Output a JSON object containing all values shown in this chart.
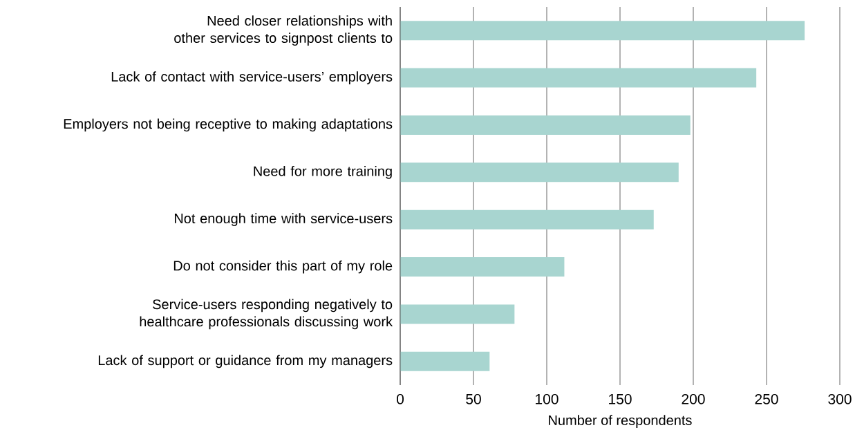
{
  "chart_data": {
    "type": "bar",
    "orientation": "horizontal",
    "categories": [
      "Need closer relationships with other services to signpost clients to",
      "Lack of contact with service-users’ employers",
      "Employers not being receptive to making adaptations",
      "Need for more training",
      "Not enough time with service-users",
      "Do not consider this part of my role",
      "Service-users responding negatively to healthcare professionals discussing work",
      "Lack of support or guidance from my managers"
    ],
    "values": [
      276,
      243,
      198,
      190,
      173,
      112,
      78,
      61
    ],
    "color": "#a8d5d0",
    "xlabel": "Number of respondents",
    "xlim": [
      0,
      300
    ],
    "xticks": [
      0,
      50,
      100,
      150,
      200,
      250,
      300
    ],
    "grid": "x"
  }
}
